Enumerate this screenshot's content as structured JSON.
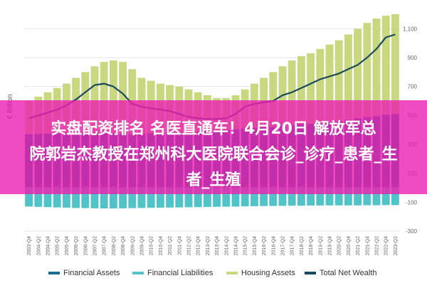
{
  "chart_data": {
    "type": "bar+line",
    "ylabel": "€ Billion",
    "ylim": [
      -300,
      1200
    ],
    "yticks": [
      1100,
      900,
      700,
      500,
      300,
      100,
      -100,
      -300
    ],
    "categories": [
      "2003-Q4",
      "2004-Q2",
      "2004-Q4",
      "2005-Q2",
      "2005-Q4",
      "2006-Q2",
      "2006-Q4",
      "2007-Q2",
      "2007-Q4",
      "2008-Q2",
      "2008-Q4",
      "2009-Q2",
      "2009-Q4",
      "2010-Q2",
      "2010-Q4",
      "2011-Q2",
      "2011-Q4",
      "2012-Q2",
      "2012-Q4",
      "2013-Q2",
      "2013-Q4",
      "2014-Q2",
      "2014-Q4",
      "2015-Q2",
      "2015-Q4",
      "2016-Q2",
      "2016-Q4",
      "2017-Q2",
      "2017-Q4",
      "2018-Q2",
      "2018-Q4",
      "2019-Q2",
      "2019-Q4",
      "2020-Q2",
      "2020-Q4",
      "2021-Q2",
      "2021-Q4",
      "2022-Q2",
      "2022-Q4",
      "2023-Q2"
    ],
    "series": [
      {
        "name": "Financial Assets",
        "type": "bar",
        "color": "#1a6e8e",
        "values": [
          370,
          372,
          374,
          376,
          378,
          380,
          381,
          382,
          382,
          378,
          370,
          368,
          372,
          376,
          380,
          382,
          380,
          382,
          386,
          390,
          395,
          400,
          405,
          410,
          412,
          418,
          420,
          428,
          432,
          438,
          442,
          448,
          455,
          460,
          470,
          480,
          490,
          495,
          505,
          510
        ]
      },
      {
        "name": "Financial Liabilities",
        "type": "bar",
        "color": "#4fc3c7",
        "values": [
          -130,
          -132,
          -134,
          -136,
          -138,
          -140,
          -141,
          -142,
          -143,
          -143,
          -142,
          -141,
          -140,
          -139,
          -138,
          -137,
          -136,
          -135,
          -134,
          -133,
          -132,
          -131,
          -130,
          -129,
          -128,
          -127,
          -126,
          -125,
          -124,
          -124,
          -123,
          -123,
          -122,
          -122,
          -122,
          -122,
          -121,
          -121,
          -120,
          -120
        ]
      },
      {
        "name": "Housing Assets",
        "type": "bar",
        "color": "#c8d87f",
        "values": [
          600,
          630,
          660,
          690,
          720,
          760,
          800,
          840,
          870,
          880,
          870,
          820,
          760,
          740,
          720,
          710,
          700,
          680,
          660,
          640,
          620,
          620,
          640,
          680,
          720,
          760,
          800,
          840,
          880,
          910,
          930,
          960,
          990,
          1020,
          1060,
          1100,
          1140,
          1170,
          1190,
          1200
        ]
      },
      {
        "name": "Total Net Wealth",
        "type": "line",
        "color": "#1b4a5e",
        "values": [
          480,
          500,
          520,
          540,
          570,
          610,
          660,
          710,
          720,
          700,
          650,
          580,
          560,
          550,
          540,
          530,
          510,
          490,
          480,
          475,
          475,
          480,
          510,
          560,
          580,
          590,
          600,
          640,
          660,
          690,
          720,
          750,
          770,
          790,
          820,
          850,
          900,
          960,
          1040,
          1060
        ]
      }
    ]
  },
  "banner": {
    "line1": "实盘配资排名 名医直通车！4月20日 解放军总",
    "line2": "院郭岩杰教授在郑州科大医院联合会诊_诊疗_患者_生",
    "line3": "者_生殖"
  }
}
